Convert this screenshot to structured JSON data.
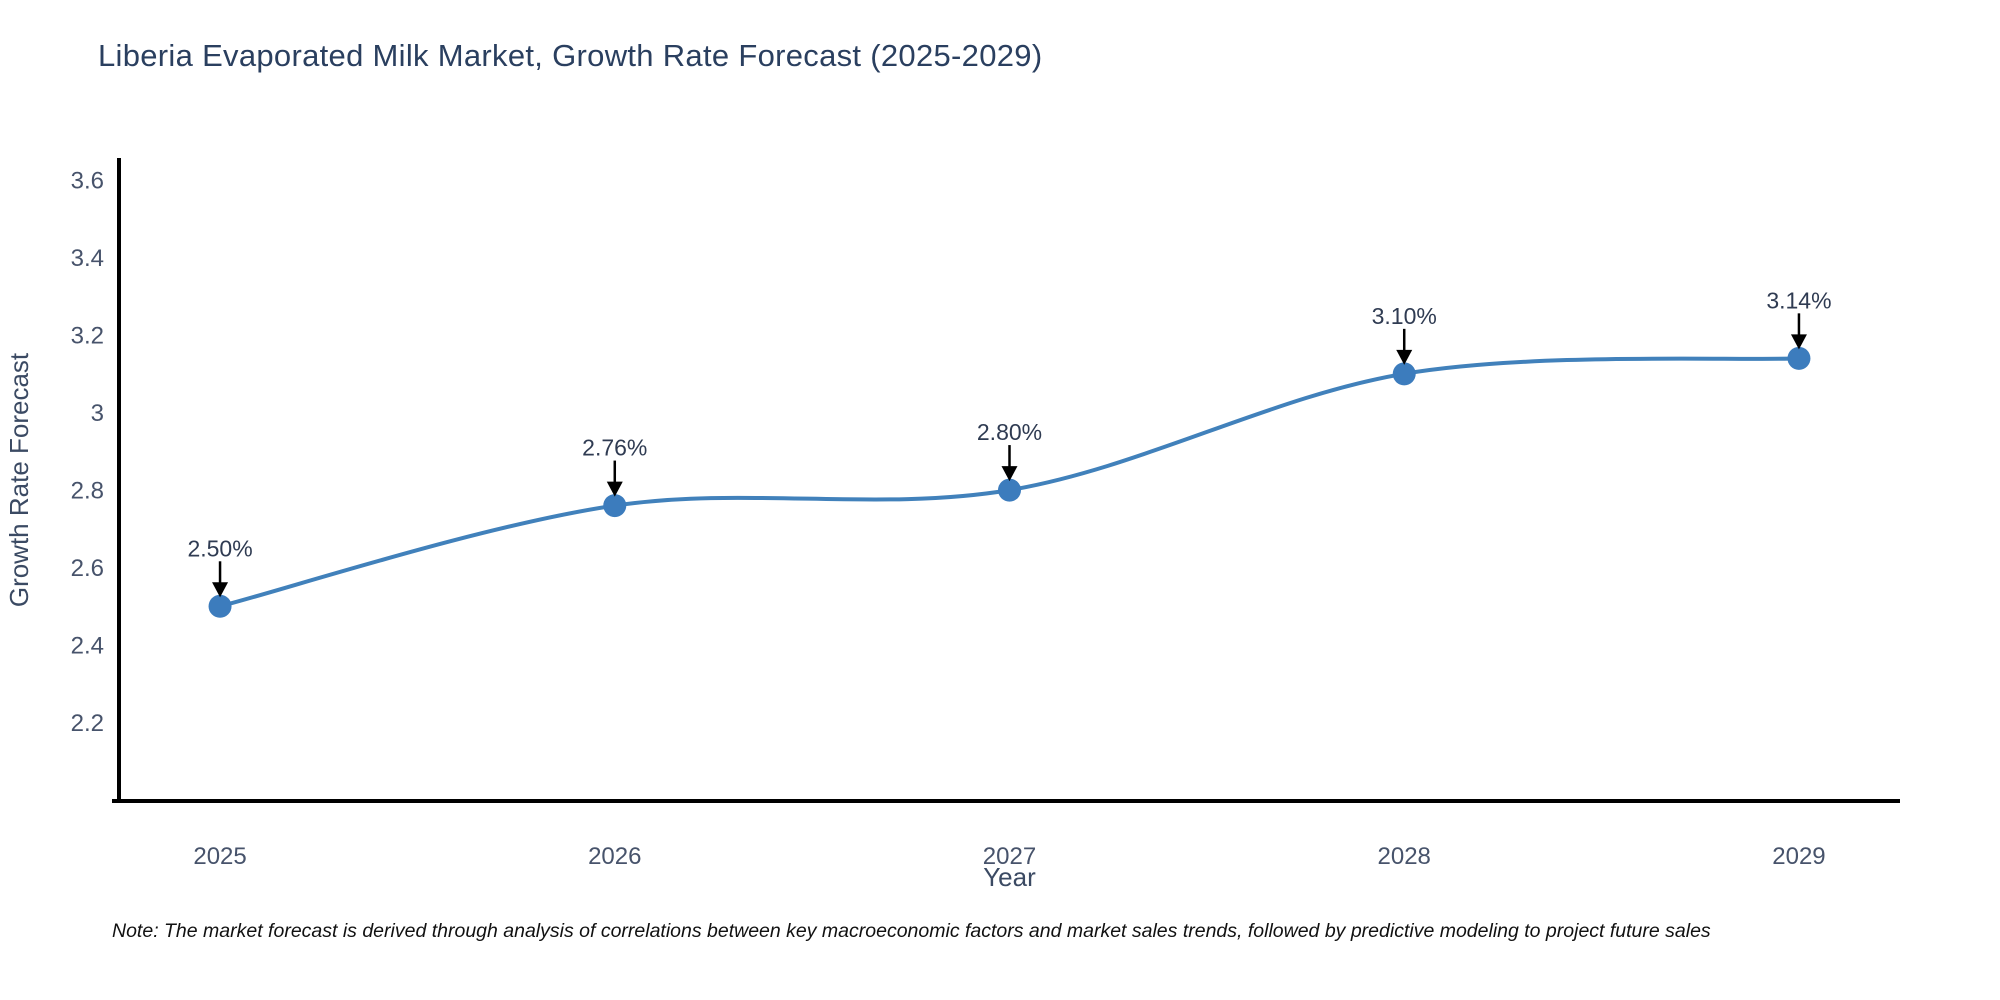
{
  "chart_data": {
    "type": "line",
    "title": "Liberia Evaporated Milk Market, Growth Rate Forecast (2025-2029)",
    "x": [
      2025,
      2026,
      2027,
      2028,
      2029
    ],
    "categories": [
      "2025",
      "2026",
      "2027",
      "2028",
      "2029"
    ],
    "values": [
      2.5,
      2.76,
      2.8,
      3.1,
      3.14
    ],
    "point_labels": [
      "2.50%",
      "2.76%",
      "2.80%",
      "3.10%",
      "3.14%"
    ],
    "xlabel": "Year",
    "ylabel": "Growth Rate Forecast",
    "yticks": [
      2.2,
      2.4,
      2.6,
      2.8,
      3,
      3.2,
      3.4,
      3.6
    ],
    "ytick_labels": [
      "2.2",
      "2.4",
      "2.6",
      "2.8",
      "3",
      "3.2",
      "3.4",
      "3.6"
    ],
    "ylim": [
      2.0,
      3.652
    ],
    "xlim": [
      2024.744,
      2029.256
    ],
    "grid": false,
    "legend": false,
    "line_shape": "spline",
    "annotation_style": "label-with-down-arrow",
    "colors": {
      "line": "#4181bb",
      "marker": "#3c7cbd",
      "axis": "#000000",
      "title": "#2a3f5f",
      "tick": "#47536b",
      "axis_title": "#3b4a63",
      "annotation": "#2f3b52",
      "arrow": "#000000",
      "note": "#111111",
      "background": "#ffffff"
    }
  },
  "note": "Note: The market forecast is derived through analysis of correlations between key macroeconomic factors and market sales trends, followed by predictive modeling to project future sales"
}
